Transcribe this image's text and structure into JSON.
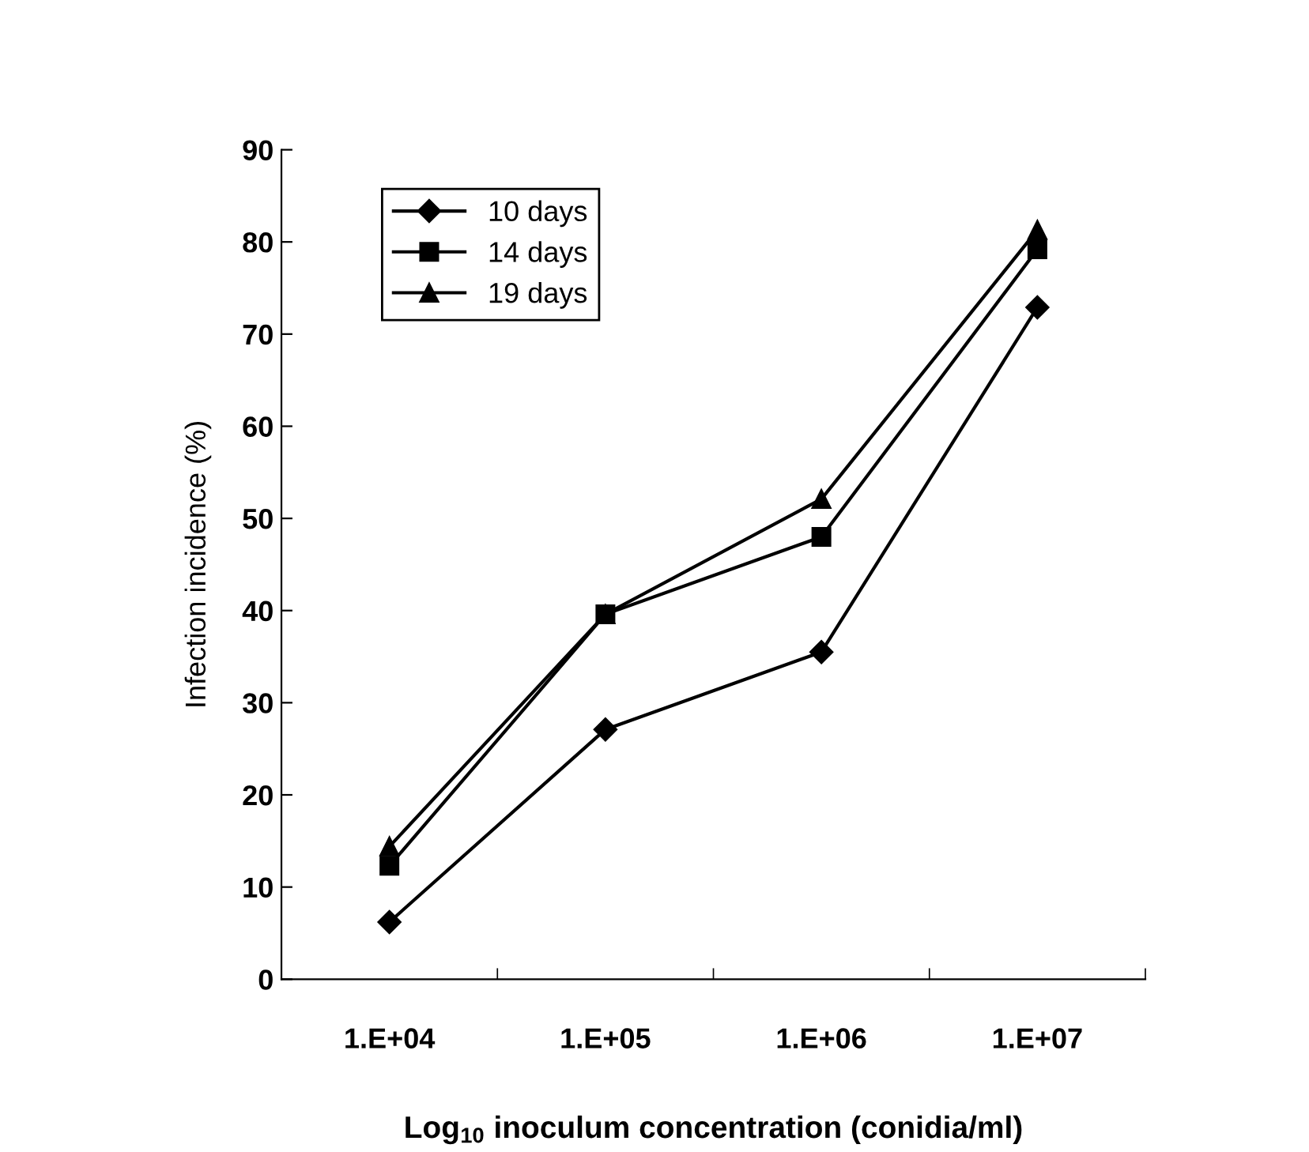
{
  "chart_data": {
    "type": "line",
    "xlabel": "Log$_{10}$ inoculum concentration (conidia/ml)",
    "ylabel": "Infection incidence (%)",
    "categories": [
      "1.E+04",
      "1.E+05",
      "1.E+06",
      "1.E+07"
    ],
    "series": [
      {
        "name": "10 days",
        "color": "#000000",
        "marker": "diamond",
        "values": [
          6.2,
          27.1,
          35.5,
          72.9
        ]
      },
      {
        "name": "14 days",
        "color": "#000000",
        "marker": "square",
        "values": [
          12.3,
          39.6,
          48.0,
          79.2
        ]
      },
      {
        "name": "19 days",
        "color": "#000000",
        "marker": "triangle",
        "values": [
          14.4,
          39.6,
          52.1,
          81.3
        ]
      }
    ],
    "ylim": [
      0,
      90
    ],
    "yticks": [
      0,
      10,
      20,
      30,
      40,
      50,
      60,
      70,
      80,
      90
    ],
    "grid": false,
    "legend": "top left",
    "line_style": "solid"
  }
}
